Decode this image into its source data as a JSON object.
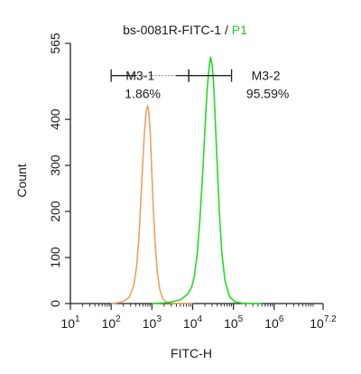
{
  "chart_data": {
    "type": "line",
    "title": {
      "main": "bs-0081R-FITC-1 / ",
      "highlight": "P1",
      "highlight_color": "#22c422"
    },
    "xlabel": "FITC-H",
    "ylabel": "Count",
    "x_scale": "log10",
    "xlim": [
      10,
      15848931.9
    ],
    "ylim": [
      0,
      565
    ],
    "x_ticks": [
      {
        "value": 10,
        "base": "10",
        "exp": "1"
      },
      {
        "value": 100,
        "base": "10",
        "exp": "2"
      },
      {
        "value": 1000,
        "base": "10",
        "exp": "3"
      },
      {
        "value": 10000,
        "base": "10",
        "exp": "4"
      },
      {
        "value": 100000,
        "base": "10",
        "exp": "5"
      },
      {
        "value": 1000000,
        "base": "10",
        "exp": "6"
      },
      {
        "value": 15848931.9,
        "base": "10",
        "exp": "7.2"
      }
    ],
    "y_ticks": [
      {
        "value": 0,
        "label": "0"
      },
      {
        "value": 100,
        "label": "100"
      },
      {
        "value": 200,
        "label": "200"
      },
      {
        "value": 300,
        "label": "300"
      },
      {
        "value": 400,
        "label": "400"
      },
      {
        "value": 565,
        "label": "565"
      }
    ],
    "grid": false,
    "series": [
      {
        "color": "#f0a060",
        "x": [
          100,
          150,
          200,
          280,
          360,
          420,
          480,
          540,
          600,
          660,
          720,
          780,
          830,
          900,
          980,
          1080,
          1200,
          1350,
          1550,
          1800,
          2200,
          3000,
          5000,
          10000
        ],
        "y": [
          0,
          2,
          5,
          14,
          40,
          80,
          140,
          230,
          310,
          375,
          415,
          430,
          420,
          380,
          300,
          210,
          130,
          70,
          32,
          12,
          4,
          1,
          0,
          0
        ]
      },
      {
        "color": "#22dd22",
        "x": [
          1000,
          2500,
          5000,
          7500,
          9500,
          11000,
          13000,
          15000,
          17500,
          20000,
          22500,
          25000,
          27500,
          30000,
          33000,
          36000,
          40000,
          45000,
          52000,
          62000,
          80000,
          110000,
          160000,
          250000,
          500000
        ],
        "y": [
          0,
          2,
          8,
          20,
          36,
          60,
          110,
          180,
          280,
          380,
          460,
          510,
          535,
          520,
          470,
          395,
          300,
          200,
          110,
          50,
          15,
          4,
          1,
          0,
          0
        ]
      }
    ],
    "gates": [
      {
        "name": "M3-1",
        "percent": "1.86%",
        "x_start": 100,
        "x_end": 8000,
        "y": 495
      },
      {
        "name": "M3-2",
        "percent": "95.59%",
        "x_start": 8000,
        "x_end": 90000,
        "y": 495
      }
    ]
  }
}
